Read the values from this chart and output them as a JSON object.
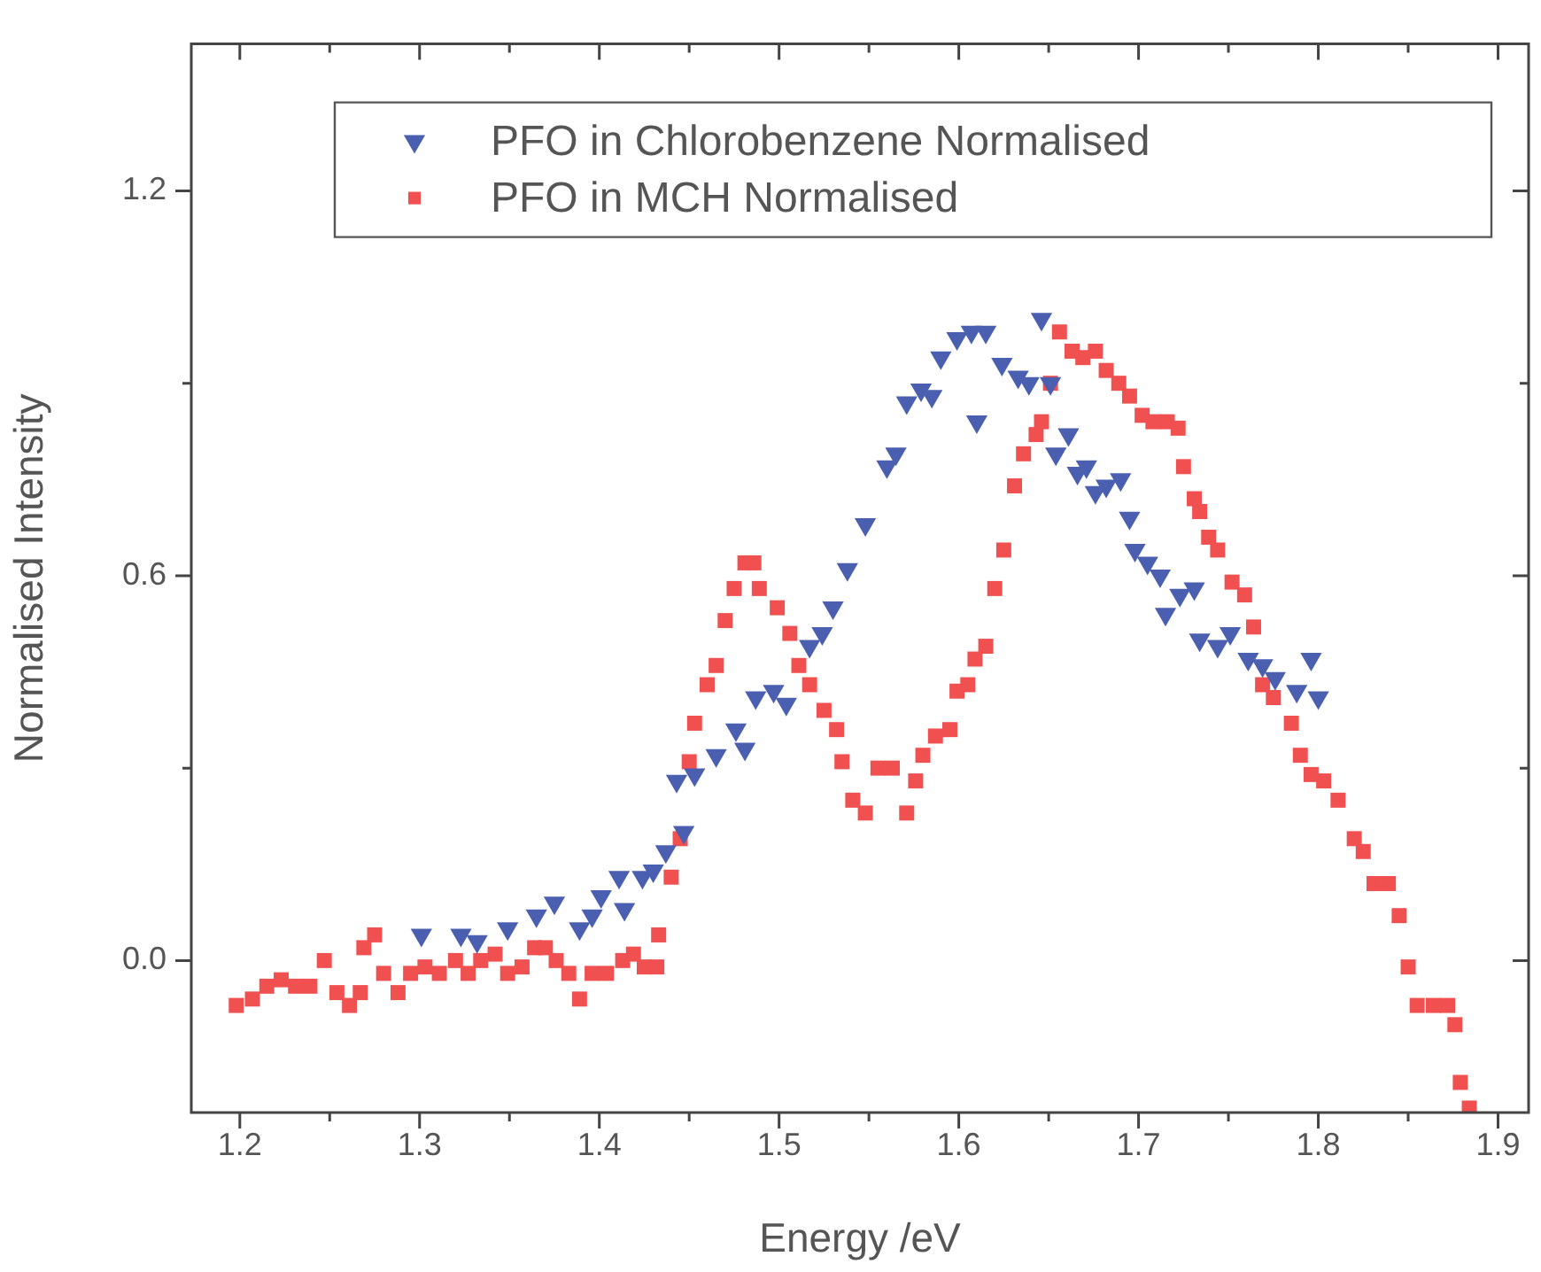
{
  "chart_data": {
    "type": "scatter",
    "xlabel": "Energy /eV",
    "ylabel": "Normalised Intensity",
    "legend": "top",
    "grid": false,
    "xlim": [
      1.173,
      1.917
    ],
    "ylim": [
      -0.237,
      1.429
    ],
    "xticks": [
      1.2,
      {
        "value": 1.25,
        "label": null
      },
      1.3,
      {
        "value": 1.35,
        "label": null
      },
      1.4,
      {
        "value": 1.45,
        "label": null
      },
      1.5,
      {
        "value": 1.55,
        "label": null
      },
      1.6,
      {
        "value": 1.65,
        "label": null
      },
      1.7,
      {
        "value": 1.75,
        "label": null
      },
      1.8,
      {
        "value": 1.85,
        "label": null
      },
      1.9
    ],
    "yticks": [
      {
        "value": 0,
        "label": "0.0"
      },
      {
        "value": 0.3,
        "label": null
      },
      {
        "value": 0.6,
        "label": "0.6"
      },
      {
        "value": 0.9,
        "label": null
      },
      {
        "value": 1.2,
        "label": "1.2"
      }
    ],
    "series": [
      {
        "name": "PFO in Chlorobenzene Normalised",
        "color": "#4a5fb0",
        "marker": "triangle",
        "x": [
          1.301,
          1.323,
          1.332,
          1.349,
          1.365,
          1.375,
          1.389,
          1.396,
          1.401,
          1.414,
          1.411,
          1.424,
          1.43,
          1.437,
          1.447,
          1.443,
          1.453,
          1.465,
          1.476,
          1.481,
          1.487,
          1.497,
          1.504,
          1.517,
          1.524,
          1.53,
          1.538,
          1.548,
          1.56,
          1.565,
          1.571,
          1.579,
          1.585,
          1.59,
          1.599,
          1.607,
          1.615,
          1.61,
          1.624,
          1.633,
          1.639,
          1.646,
          1.651,
          1.661,
          1.654,
          1.666,
          1.671,
          1.676,
          1.682,
          1.69,
          1.695,
          1.698,
          1.705,
          1.712,
          1.715,
          1.723,
          1.731,
          1.734,
          1.744,
          1.751,
          1.761,
          1.769,
          1.776,
          1.788,
          1.796,
          1.8
        ],
        "values": [
          0.04,
          0.04,
          0.03,
          0.05,
          0.07,
          0.09,
          0.05,
          0.07,
          0.1,
          0.08,
          0.13,
          0.13,
          0.14,
          0.17,
          0.2,
          0.28,
          0.29,
          0.32,
          0.36,
          0.33,
          0.41,
          0.42,
          0.4,
          0.49,
          0.51,
          0.55,
          0.61,
          0.68,
          0.77,
          0.79,
          0.87,
          0.89,
          0.88,
          0.94,
          0.97,
          0.98,
          0.98,
          0.84,
          0.93,
          0.91,
          0.9,
          1.0,
          0.9,
          0.82,
          0.79,
          0.76,
          0.77,
          0.73,
          0.74,
          0.75,
          0.69,
          0.64,
          0.62,
          0.6,
          0.54,
          0.57,
          0.58,
          0.5,
          0.49,
          0.51,
          0.47,
          0.46,
          0.44,
          0.42,
          0.47,
          0.41
        ]
      },
      {
        "name": "PFO in MCH Normalised",
        "color": "#f05050",
        "marker": "square",
        "x": [
          1.198,
          1.207,
          1.215,
          1.223,
          1.231,
          1.239,
          1.247,
          1.254,
          1.261,
          1.267,
          1.269,
          1.275,
          1.28,
          1.288,
          1.295,
          1.303,
          1.311,
          1.32,
          1.327,
          1.334,
          1.342,
          1.349,
          1.357,
          1.364,
          1.37,
          1.376,
          1.383,
          1.389,
          1.396,
          1.404,
          1.413,
          1.419,
          1.425,
          1.432,
          1.433,
          1.44,
          1.445,
          1.45,
          1.453,
          1.46,
          1.465,
          1.47,
          1.475,
          1.481,
          1.486,
          1.489,
          1.499,
          1.506,
          1.511,
          1.517,
          1.525,
          1.532,
          1.535,
          1.541,
          1.548,
          1.555,
          1.563,
          1.571,
          1.576,
          1.58,
          1.587,
          1.595,
          1.599,
          1.605,
          1.609,
          1.615,
          1.62,
          1.625,
          1.631,
          1.636,
          1.643,
          1.646,
          1.651,
          1.656,
          1.663,
          1.669,
          1.676,
          1.682,
          1.689,
          1.695,
          1.702,
          1.708,
          1.716,
          1.722,
          1.725,
          1.731,
          1.734,
          1.739,
          1.744,
          1.752,
          1.759,
          1.764,
          1.769,
          1.775,
          1.785,
          1.79,
          1.796,
          1.803,
          1.811,
          1.82,
          1.825,
          1.831,
          1.839,
          1.845,
          1.85,
          1.855,
          1.864,
          1.872,
          1.876,
          1.879,
          1.884
        ],
        "values": [
          -0.07,
          -0.06,
          -0.04,
          -0.03,
          -0.04,
          -0.04,
          0.0,
          -0.05,
          -0.07,
          -0.05,
          0.02,
          0.04,
          -0.02,
          -0.05,
          -0.02,
          -0.01,
          -0.02,
          0.0,
          -0.02,
          0.0,
          0.01,
          -0.02,
          -0.01,
          0.02,
          0.02,
          0.0,
          -0.02,
          -0.06,
          -0.02,
          -0.02,
          0.0,
          0.01,
          -0.01,
          -0.01,
          0.04,
          0.13,
          0.19,
          0.31,
          0.37,
          0.43,
          0.46,
          0.53,
          0.58,
          0.62,
          0.62,
          0.58,
          0.55,
          0.51,
          0.46,
          0.43,
          0.39,
          0.36,
          0.31,
          0.25,
          0.23,
          0.3,
          0.3,
          0.23,
          0.28,
          0.32,
          0.35,
          0.36,
          0.42,
          0.43,
          0.47,
          0.49,
          0.58,
          0.64,
          0.74,
          0.79,
          0.82,
          0.84,
          0.9,
          0.98,
          0.95,
          0.94,
          0.95,
          0.92,
          0.9,
          0.88,
          0.85,
          0.84,
          0.84,
          0.83,
          0.77,
          0.72,
          0.7,
          0.66,
          0.64,
          0.59,
          0.57,
          0.52,
          0.43,
          0.41,
          0.37,
          0.32,
          0.29,
          0.28,
          0.25,
          0.19,
          0.17,
          0.12,
          0.12,
          0.07,
          -0.01,
          -0.07,
          -0.07,
          -0.07,
          -0.1,
          -0.19,
          -0.23
        ]
      }
    ]
  }
}
